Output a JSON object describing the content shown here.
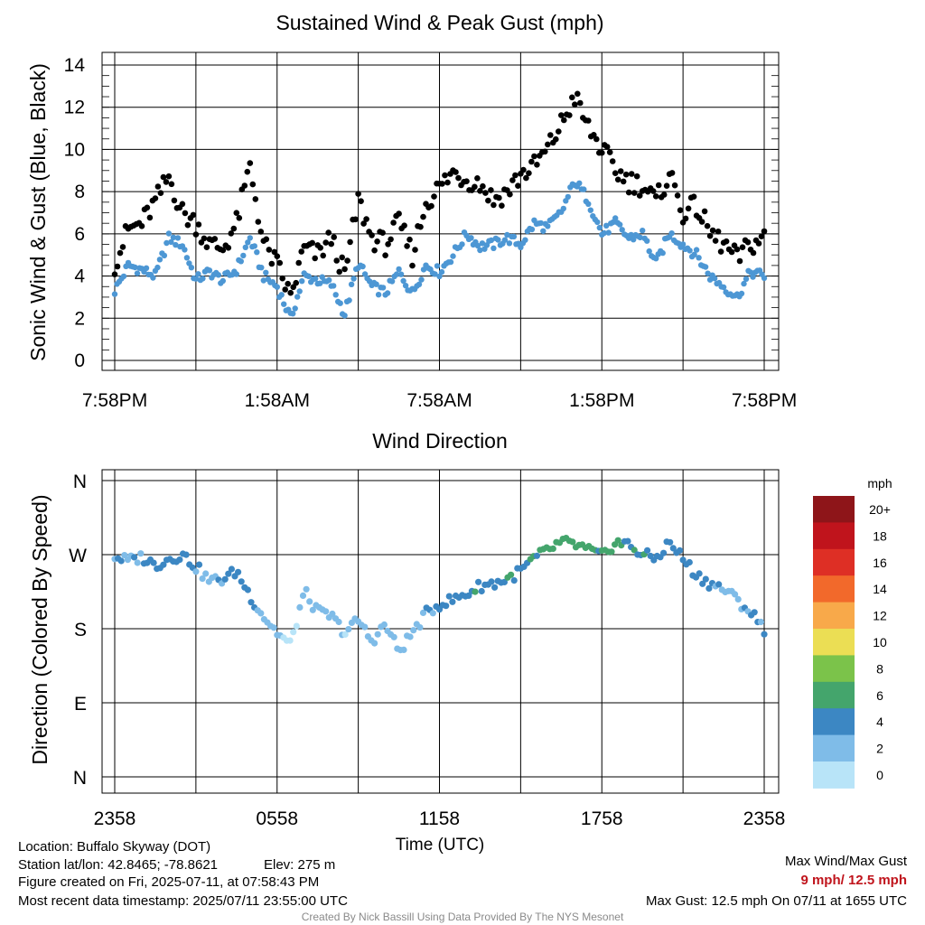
{
  "chart_data": [
    {
      "type": "scatter",
      "title": "Sustained Wind & Peak Gust (mph)",
      "ylabel": "Sonic Wind & Gust (Blue, Black)",
      "xlabel": "",
      "x_tick_labels": [
        "7:58PM",
        "1:58AM",
        "7:58AM",
        "1:58PM",
        "7:58PM"
      ],
      "x_range_hours": [
        0,
        24
      ],
      "ylim": [
        0,
        14
      ],
      "y_ticks": [
        0,
        2,
        4,
        6,
        8,
        10,
        12,
        14
      ],
      "grid": true,
      "series": [
        {
          "color": "#4d97d4",
          "hours": [
            0,
            0.5,
            1,
            1.5,
            2,
            2.5,
            3,
            3.5,
            4,
            4.5,
            5,
            5.5,
            6,
            6.5,
            7,
            7.5,
            8,
            8.5,
            9,
            9.5,
            10,
            10.5,
            11,
            11.5,
            12,
            12.5,
            13,
            13.5,
            14,
            14.5,
            15,
            15.5,
            16,
            16.5,
            17,
            17.5,
            18,
            18.5,
            19,
            19.5,
            20,
            20.5,
            21,
            21.5,
            22,
            22.5,
            23,
            23.5,
            24
          ],
          "values": [
            3.3,
            4.5,
            4.3,
            4.0,
            5.8,
            5.5,
            3.8,
            4.2,
            3.8,
            4.3,
            5.8,
            4.0,
            3.5,
            2.0,
            4.0,
            3.8,
            3.6,
            2.2,
            4.6,
            3.5,
            3.2,
            4.2,
            3.2,
            4.5,
            4.2,
            5.0,
            6.0,
            5.4,
            5.5,
            5.8,
            5.5,
            6.5,
            6.3,
            7.0,
            8.5,
            7.6,
            6.0,
            6.5,
            5.8,
            6.0,
            4.6,
            6.0,
            5.5,
            5.0,
            4.0,
            3.5,
            3.0,
            4.2,
            4.0
          ]
        },
        {
          "color": "#000000",
          "hours": [
            0,
            0.5,
            1,
            1.5,
            2,
            2.5,
            3,
            3.5,
            4,
            4.5,
            5,
            5.5,
            6,
            6.5,
            7,
            7.5,
            8,
            8.5,
            9,
            9.5,
            10,
            10.5,
            11,
            11.5,
            12,
            12.5,
            13,
            13.5,
            14,
            14.5,
            15,
            15.5,
            16,
            16.5,
            17,
            17.5,
            18,
            18.5,
            19,
            19.5,
            20,
            20.5,
            21,
            21.5,
            22,
            22.5,
            23,
            23.5,
            24
          ],
          "values": [
            4.6,
            6.2,
            6.5,
            7.5,
            8.7,
            7.0,
            6.5,
            5.5,
            5.3,
            6.5,
            9.2,
            5.5,
            4.5,
            3.0,
            5.3,
            5.0,
            5.8,
            4.0,
            7.6,
            5.8,
            5.5,
            6.5,
            5.0,
            7.5,
            8.2,
            8.9,
            8.6,
            8.4,
            7.6,
            8.0,
            8.8,
            9.2,
            10.0,
            11.2,
            12.5,
            11.0,
            10.0,
            9.0,
            8.5,
            8.3,
            7.5,
            8.9,
            7.0,
            7.3,
            6.0,
            5.5,
            4.8,
            5.5,
            5.8
          ]
        }
      ]
    },
    {
      "type": "scatter",
      "title": "Wind Direction",
      "ylabel": "Direction (Colored By Speed)",
      "xlabel": "Time (UTC)",
      "x_tick_labels": [
        "2358",
        "0558",
        "1158",
        "1758",
        "2358"
      ],
      "x_range_hours": [
        0,
        24
      ],
      "y_tick_labels": [
        "N",
        "E",
        "S",
        "W",
        "N"
      ],
      "ylim_degrees": [
        0,
        360
      ],
      "grid": true,
      "points": {
        "hours": [
          0,
          0.5,
          1,
          1.5,
          2,
          2.5,
          3,
          3.5,
          4,
          4.5,
          5,
          5.5,
          6,
          6.5,
          7,
          7.5,
          8,
          8.5,
          9,
          9.5,
          10,
          10.5,
          11,
          11.5,
          12,
          12.5,
          13,
          13.5,
          14,
          14.5,
          15,
          15.5,
          16,
          16.5,
          17,
          17.5,
          18,
          18.5,
          19,
          19.5,
          20,
          20.5,
          21,
          21.5,
          22,
          22.5,
          23,
          23.5,
          24
        ],
        "direction_deg": [
          268,
          262,
          267,
          257,
          265,
          270,
          255,
          238,
          240,
          250,
          220,
          195,
          175,
          160,
          225,
          200,
          195,
          175,
          190,
          165,
          185,
          152,
          175,
          198,
          210,
          215,
          222,
          232,
          235,
          240,
          250,
          265,
          275,
          285,
          282,
          275,
          268,
          285,
          282,
          270,
          265,
          285,
          265,
          245,
          235,
          228,
          215,
          200,
          180
        ],
        "speed_mph": [
          4.0,
          4.2,
          4.0,
          5.0,
          5.5,
          4.5,
          4.0,
          3.5,
          4.0,
          4.5,
          5.5,
          3.0,
          2.5,
          1.5,
          2.0,
          3.0,
          3.0,
          2.2,
          4.0,
          2.5,
          3.0,
          3.5,
          3.0,
          4.0,
          4.5,
          5.0,
          5.5,
          5.5,
          5.5,
          5.5,
          6.0,
          6.5,
          6.5,
          7.0,
          8.0,
          7.0,
          6.0,
          6.5,
          6.0,
          6.0,
          4.5,
          5.5,
          5.0,
          4.5,
          4.0,
          3.5,
          3.0,
          4.0,
          4.0
        ]
      }
    }
  ],
  "colorbar": {
    "unit_label": "mph",
    "labels": [
      "20+",
      "18",
      "16",
      "14",
      "12",
      "10",
      "8",
      "6",
      "4",
      "2",
      "0"
    ],
    "colors_top_to_bottom": [
      "#8e1519",
      "#c0141c",
      "#de2f25",
      "#f2692b",
      "#f8a94a",
      "#ebde54",
      "#7bc34a",
      "#44a56c",
      "#3c87c3",
      "#7fbce8",
      "#b8e4f8"
    ]
  },
  "footer": {
    "location": "Location: Buffalo Skyway (DOT)",
    "latlon": "Station lat/lon: 42.8465; -78.8621",
    "elev": "Elev: 275 m",
    "created": "Figure created on Fri, 2025-07-11, at 07:58:43 PM",
    "recent": "Most recent data timestamp: 2025/07/11 23:55:00 UTC",
    "maxlabel": "Max Wind/Max Gust",
    "maxvalue": "9 mph/ 12.5 mph",
    "maxgust": "Max Gust: 12.5 mph On 07/11 at 1655 UTC",
    "credit": "Created By Nick Bassill Using Data Provided By The NYS Mesonet"
  }
}
